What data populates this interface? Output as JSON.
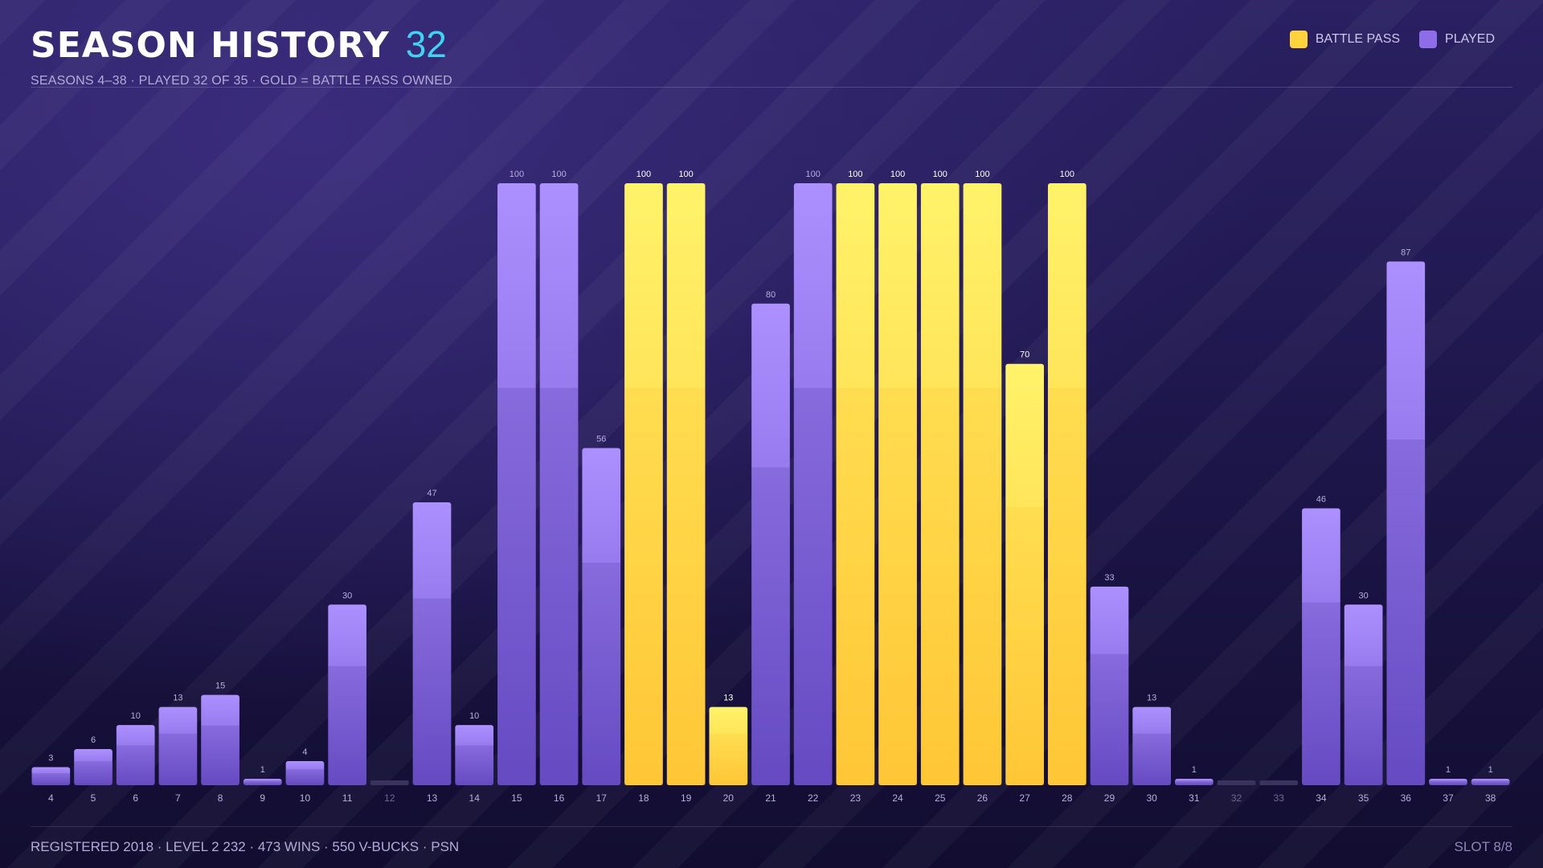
{
  "header": {
    "title": "SEASON HISTORY",
    "count": "32",
    "subtitle": "SEASONS 4–38  ·  PLAYED 32 OF 35  ·  GOLD = BATTLE PASS OWNED"
  },
  "legend": [
    {
      "label": "BATTLE PASS",
      "color": "#ffd23e"
    },
    {
      "label": "PLAYED",
      "color": "#8e6ee8"
    }
  ],
  "footer": {
    "left": "REGISTERED 2018  ·  LEVEL 2 232  ·  473 WINS  ·  550 V-BUCKS  ·  PSN",
    "right": "SLOT 8/8"
  },
  "chart_data": {
    "type": "bar",
    "categories": [
      "4",
      "5",
      "6",
      "7",
      "8",
      "9",
      "10",
      "11",
      "12",
      "13",
      "14",
      "15",
      "16",
      "17",
      "18",
      "19",
      "20",
      "21",
      "22",
      "23",
      "24",
      "25",
      "26",
      "27",
      "28",
      "29",
      "30",
      "31",
      "32",
      "33",
      "34",
      "35",
      "36",
      "37",
      "38"
    ],
    "series": [
      {
        "name": "Played",
        "values": [
          3,
          6,
          10,
          13,
          15,
          1,
          4,
          30,
          0,
          47,
          10,
          100,
          100,
          56,
          100,
          100,
          13,
          80,
          100,
          100,
          100,
          100,
          100,
          70,
          100,
          33,
          13,
          1,
          0,
          0,
          46,
          30,
          87,
          1,
          1
        ]
      }
    ],
    "battle_pass": [
      false,
      false,
      false,
      false,
      false,
      false,
      false,
      false,
      false,
      false,
      false,
      false,
      false,
      false,
      true,
      true,
      true,
      false,
      false,
      true,
      true,
      true,
      true,
      true,
      true,
      false,
      false,
      false,
      false,
      false,
      false,
      false,
      false,
      false,
      false
    ],
    "played": [
      true,
      true,
      true,
      true,
      true,
      true,
      true,
      true,
      false,
      true,
      true,
      true,
      true,
      true,
      true,
      true,
      true,
      true,
      true,
      true,
      true,
      true,
      true,
      true,
      true,
      true,
      true,
      true,
      false,
      false,
      true,
      true,
      true,
      true,
      true
    ],
    "ylim": [
      0,
      100
    ],
    "grid": false,
    "legend_position": "top-right",
    "colors": {
      "gold_top": "#fff36a",
      "gold_bottom": "#ffc93a",
      "purple_top": "#ad90ff",
      "purple_bottom": "#6e52cc",
      "empty": "#3a3360"
    }
  }
}
